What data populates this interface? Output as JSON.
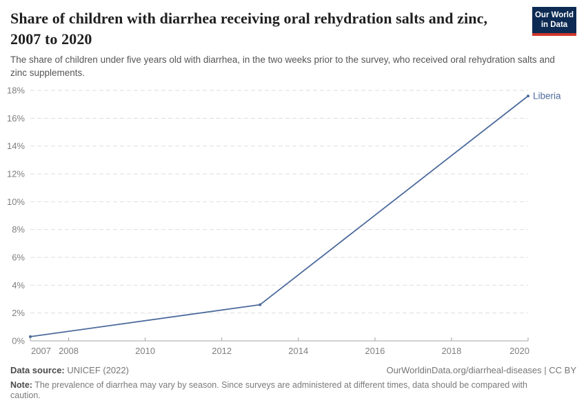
{
  "header": {
    "title": "Share of children with diarrhea receiving oral rehydration salts and zinc, 2007 to 2020",
    "subtitle": "The share of children under five years old with diarrhea, in the two weeks prior to the survey, who received oral rehydration salts and zinc supplements."
  },
  "logo": {
    "line1": "Our World",
    "line2": "in Data",
    "bg_color": "#0c2a52",
    "stripe_color": "#d0372b"
  },
  "chart_data": {
    "type": "line",
    "title": "Share of children with diarrhea receiving oral rehydration salts and zinc, 2007 to 2020",
    "series": [
      {
        "name": "Liberia",
        "color": "#4c6a9c",
        "points": [
          {
            "x": 2007,
            "y": 0.3
          },
          {
            "x": 2013,
            "y": 2.6
          },
          {
            "x": 2020,
            "y": 17.6
          }
        ]
      }
    ],
    "xlim": [
      2007,
      2020
    ],
    "ylim": [
      0,
      18
    ],
    "x_ticks": [
      2007,
      2008,
      2010,
      2012,
      2014,
      2016,
      2018,
      2020
    ],
    "y_ticks": [
      0,
      2,
      4,
      6,
      8,
      10,
      12,
      14,
      16,
      18
    ],
    "y_tick_suffix": "%",
    "grid": "horizontal-dashed",
    "legend_position": "end-of-line-label"
  },
  "colors": {
    "grid": "#dddddd",
    "axis": "#a3a3a3",
    "tick_label": "#7f7f7f"
  },
  "footer": {
    "source_label": "Data source:",
    "source_value": "UNICEF (2022)",
    "link": "OurWorldinData.org/diarrheal-diseases | CC BY",
    "note_label": "Note:",
    "note_text": "The prevalence of diarrhea may vary by season. Since surveys are administered at different times, data should be compared with caution."
  }
}
